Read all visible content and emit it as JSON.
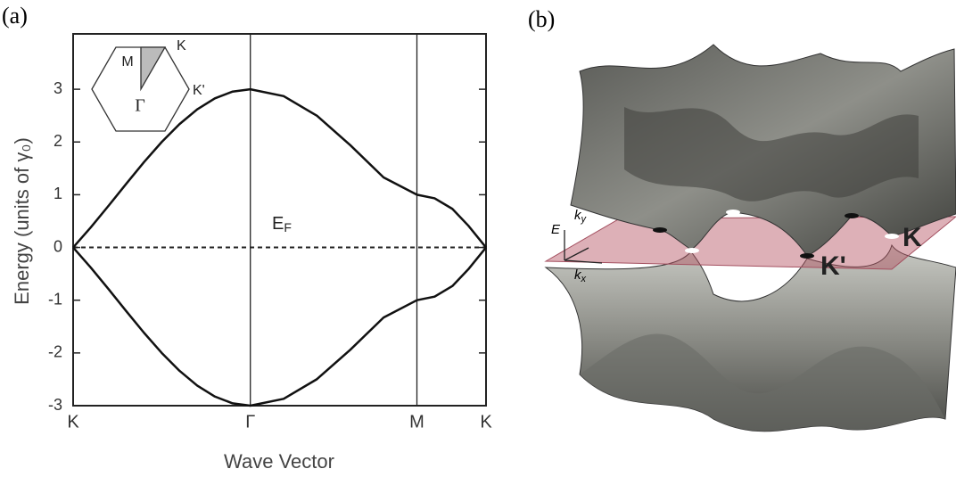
{
  "panel_labels": [
    "(a)",
    "(b)"
  ],
  "chart_data": {
    "type": "line",
    "ylabel": "Energy (units of γ₀)",
    "xlabel": "Wave Vector",
    "xlim": [
      0,
      2.33
    ],
    "ylim": [
      -3,
      4.05
    ],
    "xticks": [
      {
        "value": 0,
        "label": "K"
      },
      {
        "value": 1,
        "label": "Γ"
      },
      {
        "value": 1.94,
        "label": "M"
      },
      {
        "value": 2.33,
        "label": "K"
      }
    ],
    "yticks": [
      -3,
      -2,
      -1,
      0,
      1,
      2,
      3
    ],
    "x": [
      0,
      0.1,
      0.2,
      0.3,
      0.4,
      0.5,
      0.6,
      0.7,
      0.8,
      0.9,
      1,
      1.188,
      1.376,
      1.564,
      1.752,
      1.94,
      2.04,
      2.14,
      2.23,
      2.33
    ],
    "series": [
      {
        "color": "#111111",
        "values": [
          0,
          0.382,
          0.791,
          1.209,
          1.618,
          2,
          2.338,
          2.618,
          2.827,
          2.956,
          3,
          2.87,
          2.497,
          1.94,
          1.328,
          1,
          0.932,
          0.732,
          0.414,
          0
        ]
      },
      {
        "color": "#111111",
        "values": [
          0,
          -0.382,
          -0.791,
          -1.209,
          -1.618,
          -2,
          -2.338,
          -2.618,
          -2.827,
          -2.956,
          -3,
          -2.87,
          -2.497,
          -1.94,
          -1.328,
          -1,
          -0.932,
          -0.732,
          -0.414,
          0
        ]
      }
    ],
    "zero_line": true,
    "grid": true,
    "annotation": {
      "text": "E",
      "sub": "F"
    },
    "inset_labels": [
      "M",
      "K",
      "Γ",
      "K'"
    ]
  },
  "panel_b": {
    "axes": [
      {
        "text": "E"
      },
      {
        "text": "k",
        "sub": "y"
      },
      {
        "text": "k",
        "sub": "x"
      }
    ],
    "points": [
      "K'",
      "K"
    ]
  }
}
